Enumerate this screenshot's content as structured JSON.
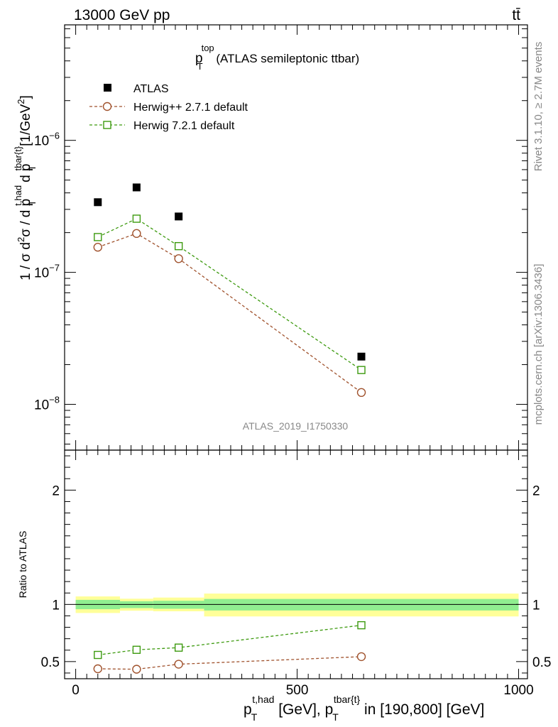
{
  "header": {
    "energy_label": "13000 GeV pp",
    "process_label": "tt̄"
  },
  "side_labels": {
    "rivet": "Rivet 3.1.10, ≥ 2.7M events",
    "mcplots": "mcplots.cern.ch [arXiv:1306.3436]"
  },
  "chart_data": [
    {
      "type": "scatter",
      "panel": "main",
      "title": {
        "base": "p",
        "sup": "top",
        "sub": "T",
        "rest": " (ATLAS semileptonic ttbar)"
      },
      "watermark": "ATLAS_2019_I1750330",
      "ylabel": "1 / σ d²σ / d p_T^{t,had} d p_T^{tbar{t}} [1/GeV²]",
      "yscale": "log",
      "ylim": [
        4.5e-09,
        7.5e-06
      ],
      "yticks": [
        {
          "value": 1e-08,
          "mant": "10",
          "exp": "−8"
        },
        {
          "value": 1e-07,
          "mant": "10",
          "exp": "−7"
        },
        {
          "value": 1e-06,
          "mant": "10",
          "exp": "−6"
        }
      ],
      "legend_position": "top-left",
      "series": [
        {
          "name": "ATLAS",
          "color": "#000000",
          "marker": "filled-square",
          "line": "none",
          "x": [
            50,
            137.5,
            232.5,
            645
          ],
          "y": [
            3.4e-07,
            4.4e-07,
            2.65e-07,
            2.3e-08
          ]
        },
        {
          "name": "Herwig++ 2.7.1 default",
          "color": "#a0522d",
          "marker": "open-circle",
          "line": "dashed",
          "x": [
            50,
            137.5,
            232.5,
            645
          ],
          "y": [
            1.55e-07,
            1.97e-07,
            1.27e-07,
            1.23e-08
          ]
        },
        {
          "name": "Herwig 7.2.1 default",
          "color": "#3d9a0f",
          "marker": "open-square",
          "line": "dashed",
          "x": [
            50,
            137.5,
            232.5,
            645
          ],
          "y": [
            1.85e-07,
            2.55e-07,
            1.58e-07,
            1.82e-08
          ]
        }
      ]
    },
    {
      "type": "scatter",
      "panel": "ratio",
      "ylabel": "Ratio to ATLAS",
      "ylim": [
        0.35,
        2.35
      ],
      "yticks": [
        0.5,
        1,
        2
      ],
      "xlabel": {
        "p1": "p",
        "sub1": "T",
        "sup1": "t,had",
        "mid": " [GeV], ",
        "p2": "p",
        "sub2": "T",
        "sup2": "tbar{t}",
        "rest": " in [190,800] [GeV]"
      },
      "xlim": [
        -25,
        1020
      ],
      "xticks": [
        0,
        500,
        1000
      ],
      "bands": [
        {
          "x0": 0,
          "x1": 100,
          "inner": [
            0.958,
            1.04
          ],
          "outer": [
            0.925,
            1.07
          ]
        },
        {
          "x0": 100,
          "x1": 175,
          "inner": [
            0.968,
            1.028
          ],
          "outer": [
            0.945,
            1.05
          ]
        },
        {
          "x0": 175,
          "x1": 290,
          "inner": [
            0.962,
            1.032
          ],
          "outer": [
            0.94,
            1.06
          ]
        },
        {
          "x0": 290,
          "x1": 1000,
          "inner": [
            0.947,
            1.048
          ],
          "outer": [
            0.895,
            1.095
          ]
        }
      ],
      "band_colors": {
        "inner": "#90ee90",
        "outer": "#ffff99"
      },
      "series": [
        {
          "name": "Herwig++ 2.7.1 default",
          "color": "#a0522d",
          "marker": "open-circle",
          "x": [
            50,
            137.5,
            232.5,
            645
          ],
          "y": [
            0.437,
            0.433,
            0.477,
            0.543
          ]
        },
        {
          "name": "Herwig 7.2.1 default",
          "color": "#3d9a0f",
          "marker": "open-square",
          "x": [
            50,
            137.5,
            232.5,
            645
          ],
          "y": [
            0.558,
            0.603,
            0.622,
            0.818
          ]
        }
      ]
    }
  ]
}
